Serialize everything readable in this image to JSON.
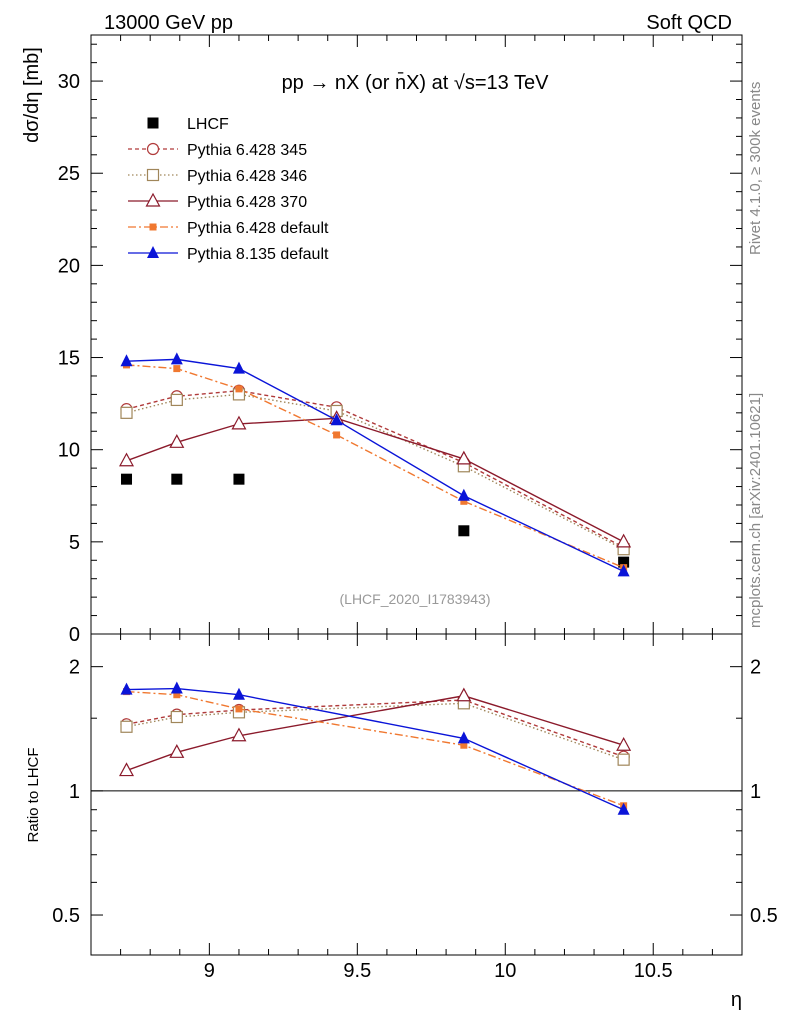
{
  "header": {
    "left": "13000 GeV pp",
    "right": "Soft QCD"
  },
  "side_labels": {
    "rivet": "Rivet 4.1.0, ≥ 300k events",
    "mcplots": "mcplots.cern.ch [arXiv:2401.10621]"
  },
  "chart_data": [
    {
      "type": "line",
      "title": "pp → nX (or n̄X) at √s=13 TeV",
      "watermark": "(LHCF_2020_I1783943)",
      "xlabel": "η",
      "ylabel": "dσ/dη [mb]",
      "xlim": [
        8.6,
        10.8
      ],
      "ylim": [
        0,
        32.5
      ],
      "yticks": [
        0,
        5,
        10,
        15,
        20,
        25,
        30
      ],
      "ytick_labels": [
        "0",
        "5",
        "10",
        "15",
        "20",
        "25",
        "30"
      ],
      "legend_position": "top-left",
      "series": [
        {
          "name": "LHCF",
          "color": "#000000",
          "style": "none",
          "marker": "filled-square",
          "x": [
            8.72,
            8.89,
            9.1,
            9.86,
            10.4
          ],
          "y": [
            8.4,
            8.4,
            8.4,
            5.6,
            3.9
          ]
        },
        {
          "name": "Pythia 6.428 345",
          "color": "#b03a3a",
          "style": "dashed",
          "marker": "open-circle",
          "x": [
            8.72,
            8.89,
            9.1,
            9.43,
            9.86,
            10.4
          ],
          "y": [
            12.2,
            12.9,
            13.2,
            12.3,
            9.3,
            4.7
          ]
        },
        {
          "name": "Pythia 6.428 346",
          "color": "#a0865a",
          "style": "dotted",
          "marker": "open-square",
          "x": [
            8.72,
            8.89,
            9.1,
            9.43,
            9.86,
            10.4
          ],
          "y": [
            12.0,
            12.7,
            13.0,
            12.1,
            9.1,
            4.6
          ]
        },
        {
          "name": "Pythia 6.428 370",
          "color": "#8b1a2b",
          "style": "solid",
          "marker": "open-triangle",
          "x": [
            8.72,
            8.89,
            9.1,
            9.43,
            9.86,
            10.4
          ],
          "y": [
            9.4,
            10.4,
            11.4,
            11.7,
            9.5,
            5.0
          ]
        },
        {
          "name": "Pythia 6.428 default",
          "color": "#f07830",
          "style": "dashdot",
          "marker": "filled-square",
          "x": [
            8.72,
            8.89,
            9.1,
            9.43,
            9.86,
            10.4
          ],
          "y": [
            14.6,
            14.4,
            13.3,
            10.8,
            7.2,
            3.6
          ]
        },
        {
          "name": "Pythia 8.135 default",
          "color": "#0a14d8",
          "style": "solid",
          "marker": "filled-triangle",
          "x": [
            8.72,
            8.89,
            9.1,
            9.43,
            9.86,
            10.4
          ],
          "y": [
            14.8,
            14.9,
            14.4,
            11.6,
            7.5,
            3.4
          ]
        }
      ]
    },
    {
      "type": "line",
      "xlabel": "η",
      "ylabel": "Ratio to LHCF",
      "yscale": "log",
      "xlim": [
        8.6,
        10.8
      ],
      "ylim": [
        0.4,
        2.4
      ],
      "xticks": [
        9,
        9.5,
        10,
        10.5
      ],
      "xtick_labels": [
        "9",
        "9.5",
        "10",
        "10.5"
      ],
      "yticks": [
        0.5,
        1,
        2
      ],
      "ytick_labels": [
        "0.5",
        "1",
        "2"
      ],
      "reference_line": 1,
      "series": [
        {
          "name": "Pythia 6.428 345",
          "x": [
            8.72,
            8.89,
            9.1,
            9.86,
            10.4
          ],
          "y": [
            1.45,
            1.53,
            1.57,
            1.66,
            1.21
          ]
        },
        {
          "name": "Pythia 6.428 346",
          "x": [
            8.72,
            8.89,
            9.1,
            9.86,
            10.4
          ],
          "y": [
            1.43,
            1.51,
            1.55,
            1.63,
            1.19
          ]
        },
        {
          "name": "Pythia 6.428 370",
          "x": [
            8.72,
            8.89,
            9.1,
            9.86,
            10.4
          ],
          "y": [
            1.12,
            1.24,
            1.36,
            1.7,
            1.29
          ]
        },
        {
          "name": "Pythia 6.428 default",
          "x": [
            8.72,
            8.89,
            9.1,
            9.86,
            10.4
          ],
          "y": [
            1.74,
            1.71,
            1.58,
            1.29,
            0.92
          ]
        },
        {
          "name": "Pythia 8.135 default",
          "x": [
            8.72,
            8.89,
            9.1,
            9.86,
            10.4
          ],
          "y": [
            1.76,
            1.77,
            1.71,
            1.34,
            0.9
          ]
        }
      ]
    }
  ]
}
